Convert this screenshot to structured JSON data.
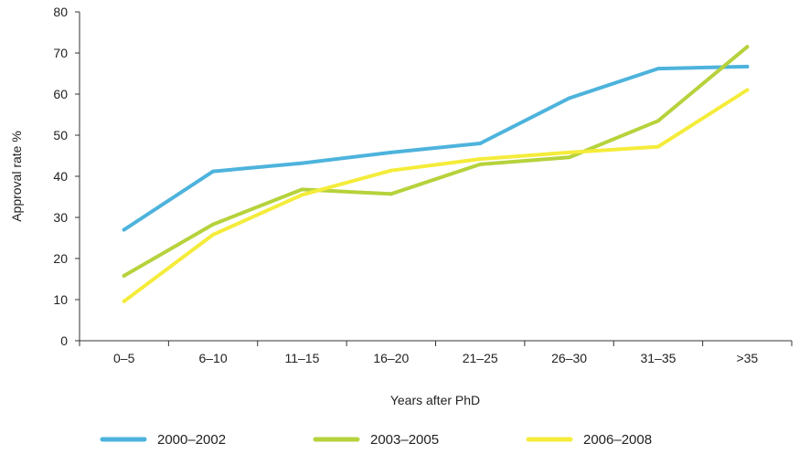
{
  "chart_data": {
    "type": "line",
    "categories": [
      "0–5",
      "6–10",
      "11–15",
      "16–20",
      "21–25",
      "26–30",
      "31–35",
      ">35"
    ],
    "ylim": [
      0,
      80
    ],
    "yticks": [
      0,
      10,
      20,
      30,
      40,
      50,
      60,
      70,
      80
    ],
    "xlabel": "Years after PhD",
    "ylabel": "Approval rate %",
    "grid": false,
    "legend_position": "bottom-left",
    "series": [
      {
        "name": "2000–2002",
        "color": "#4db3dc",
        "values": [
          27,
          41.2,
          43.2,
          45.8,
          48,
          59,
          66.2,
          66.7
        ]
      },
      {
        "name": "2003–2005",
        "color": "#b6d23c",
        "values": [
          15.8,
          28.3,
          36.8,
          35.7,
          42.9,
          44.6,
          53.5,
          71.5
        ]
      },
      {
        "name": "2006–2008",
        "color": "#f4ec3a",
        "values": [
          9.6,
          25.8,
          35.5,
          41.4,
          44.2,
          45.8,
          47.2,
          61
        ]
      }
    ]
  }
}
